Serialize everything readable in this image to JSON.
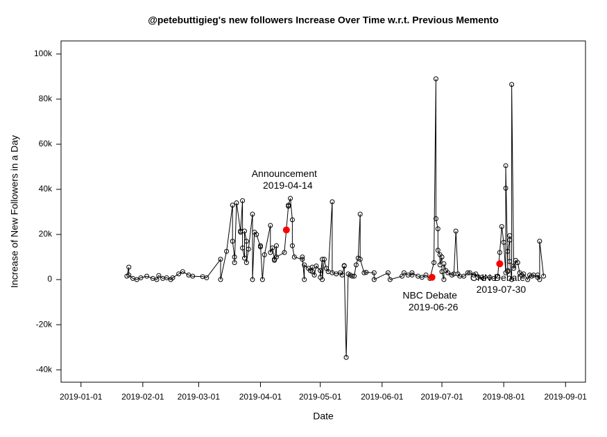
{
  "chart_data": {
    "type": "scatter",
    "title": "@petebuttigieg's new followers Increase Over Time w.r.t. Previous Memento",
    "x_label": "Date",
    "y_label": "Increase of New Followers in a Day",
    "color": "#000000",
    "x": [
      "2019-01-24",
      "2019-01-25",
      "2019-01-25",
      "2019-01-27",
      "2019-01-29",
      "2019-01-31",
      "2019-02-03",
      "2019-02-06",
      "2019-02-08",
      "2019-02-09",
      "2019-02-11",
      "2019-02-13",
      "2019-02-15",
      "2019-02-16",
      "2019-02-19",
      "2019-02-21",
      "2019-02-24",
      "2019-02-26",
      "2019-03-03",
      "2019-03-05",
      "2019-03-12",
      "2019-03-12",
      "2019-03-15",
      "2019-03-18",
      "2019-03-18",
      "2019-03-19",
      "2019-03-19",
      "2019-03-20",
      "2019-03-22",
      "2019-03-22",
      "2019-03-23",
      "2019-03-23",
      "2019-03-24",
      "2019-03-24",
      "2019-03-25",
      "2019-03-25",
      "2019-03-26",
      "2019-03-28",
      "2019-03-28",
      "2019-03-29",
      "2019-03-30",
      "2019-04-01",
      "2019-04-01",
      "2019-04-02",
      "2019-04-03",
      "2019-04-06",
      "2019-04-06",
      "2019-04-07",
      "2019-04-08",
      "2019-04-08",
      "2019-04-09",
      "2019-04-09",
      "2019-04-13",
      "2019-04-15",
      "2019-04-15",
      "2019-04-16",
      "2019-04-17",
      "2019-04-17",
      "2019-04-18",
      "2019-04-22",
      "2019-04-22",
      "2019-04-23",
      "2019-04-23",
      "2019-04-25",
      "2019-04-26",
      "2019-04-27",
      "2019-04-27",
      "2019-04-28",
      "2019-04-29",
      "2019-05-01",
      "2019-05-01",
      "2019-05-02",
      "2019-05-02",
      "2019-05-03",
      "2019-05-04",
      "2019-05-05",
      "2019-05-07",
      "2019-05-07",
      "2019-05-09",
      "2019-05-11",
      "2019-05-12",
      "2019-05-13",
      "2019-05-13",
      "2019-05-14",
      "2019-05-15",
      "2019-05-16",
      "2019-05-17",
      "2019-05-18",
      "2019-05-19",
      "2019-05-20",
      "2019-05-21",
      "2019-05-21",
      "2019-05-23",
      "2019-05-24",
      "2019-05-28",
      "2019-05-28",
      "2019-06-04",
      "2019-06-05",
      "2019-06-11",
      "2019-06-12",
      "2019-06-14",
      "2019-06-16",
      "2019-06-16",
      "2019-06-19",
      "2019-06-21",
      "2019-06-23",
      "2019-06-25",
      "2019-06-27",
      "2019-06-28",
      "2019-06-28",
      "2019-06-29",
      "2019-06-29",
      "2019-06-30",
      "2019-06-30",
      "2019-07-01",
      "2019-07-01",
      "2019-07-02",
      "2019-07-02",
      "2019-07-03",
      "2019-07-04",
      "2019-07-06",
      "2019-07-07",
      "2019-07-08",
      "2019-07-09",
      "2019-07-10",
      "2019-07-12",
      "2019-07-14",
      "2019-07-15",
      "2019-07-17",
      "2019-07-18",
      "2019-07-19",
      "2019-07-21",
      "2019-07-22",
      "2019-07-25",
      "2019-07-27",
      "2019-07-29",
      "2019-07-30",
      "2019-07-31",
      "2019-08-01",
      "2019-08-02",
      "2019-08-02",
      "2019-08-02",
      "2019-08-03",
      "2019-08-03",
      "2019-08-03",
      "2019-08-04",
      "2019-08-04",
      "2019-08-04",
      "2019-08-05",
      "2019-08-05",
      "2019-08-06",
      "2019-08-06",
      "2019-08-07",
      "2019-08-08",
      "2019-08-09",
      "2019-08-10",
      "2019-08-11",
      "2019-08-13",
      "2019-08-14",
      "2019-08-15",
      "2019-08-16",
      "2019-08-18",
      "2019-08-18",
      "2019-08-19",
      "2019-08-19",
      "2019-08-21"
    ],
    "values": [
      1500,
      5500,
      2000,
      500,
      0,
      800,
      1500,
      500,
      0,
      1800,
      500,
      800,
      0,
      800,
      2500,
      3500,
      2000,
      1500,
      1300,
      800,
      9000,
      0,
      12500,
      33000,
      17000,
      10000,
      7500,
      34000,
      21500,
      21000,
      35000,
      14000,
      9500,
      21500,
      17000,
      7500,
      13500,
      29000,
      0,
      21000,
      20000,
      14500,
      15000,
      0,
      11000,
      24000,
      12000,
      14000,
      9000,
      8500,
      15000,
      10000,
      12000,
      32500,
      33000,
      36000,
      26500,
      15000,
      10000,
      9000,
      10000,
      0,
      6500,
      5000,
      4000,
      5500,
      3500,
      2000,
      6000,
      4000,
      1000,
      9000,
      0,
      9000,
      5000,
      3500,
      34500,
      3000,
      2500,
      3000,
      2000,
      6000,
      6200,
      -34500,
      2500,
      2000,
      1500,
      1500,
      6500,
      9500,
      29000,
      9000,
      3000,
      3200,
      3000,
      0,
      3000,
      0,
      1500,
      3000,
      2000,
      2000,
      3000,
      1500,
      1000,
      2000,
      500,
      7500,
      89000,
      27000,
      22500,
      13000,
      11000,
      6500,
      10000,
      3500,
      0,
      7000,
      4000,
      3000,
      2000,
      2500,
      21500,
      2500,
      1500,
      1500,
      3000,
      3000,
      2000,
      2500,
      1000,
      1000,
      500,
      1000,
      500,
      1500,
      12000,
      23500,
      16500,
      3000,
      40500,
      50500,
      4000,
      3500,
      12500,
      17500,
      19500,
      8000,
      0,
      86500,
      6000,
      5000,
      8500,
      7500,
      3000,
      2000,
      2500,
      0,
      2000,
      1500,
      2000,
      1000,
      2000,
      0,
      17000,
      1500
    ],
    "annotations": [
      {
        "text": "Announcement",
        "x": "2019-04-14",
        "value": 22000,
        "color": "#ff0000",
        "text_color": "#1a1a80"
      },
      {
        "text": "NBC Debate",
        "x": "2019-06-26",
        "value": 1000,
        "color": "#ff0000",
        "text_color": "#1a1a80"
      },
      {
        "text": "CNN Debate",
        "x": "2019-07-30",
        "value": 7000,
        "color": "#ff0000",
        "text_color": "#1a1a80"
      }
    ],
    "xlim": [
      "2018-12-22",
      "2019-09-11"
    ],
    "xticks": [
      "2019-01-01",
      "2019-02-01",
      "2019-03-01",
      "2019-04-01",
      "2019-05-01",
      "2019-06-01",
      "2019-07-01",
      "2019-08-01",
      "2019-09-01"
    ],
    "ylim": [
      -45500,
      105800
    ],
    "yticks": [
      {
        "value": -40000,
        "label": "-40k"
      },
      {
        "value": -20000,
        "label": "-20k"
      },
      0,
      {
        "value": 20000,
        "label": "20k"
      },
      {
        "value": 40000,
        "label": "40k"
      },
      {
        "value": 60000,
        "label": "60k"
      },
      {
        "value": 80000,
        "label": "80k"
      },
      {
        "value": 100000,
        "label": "100k"
      }
    ]
  }
}
